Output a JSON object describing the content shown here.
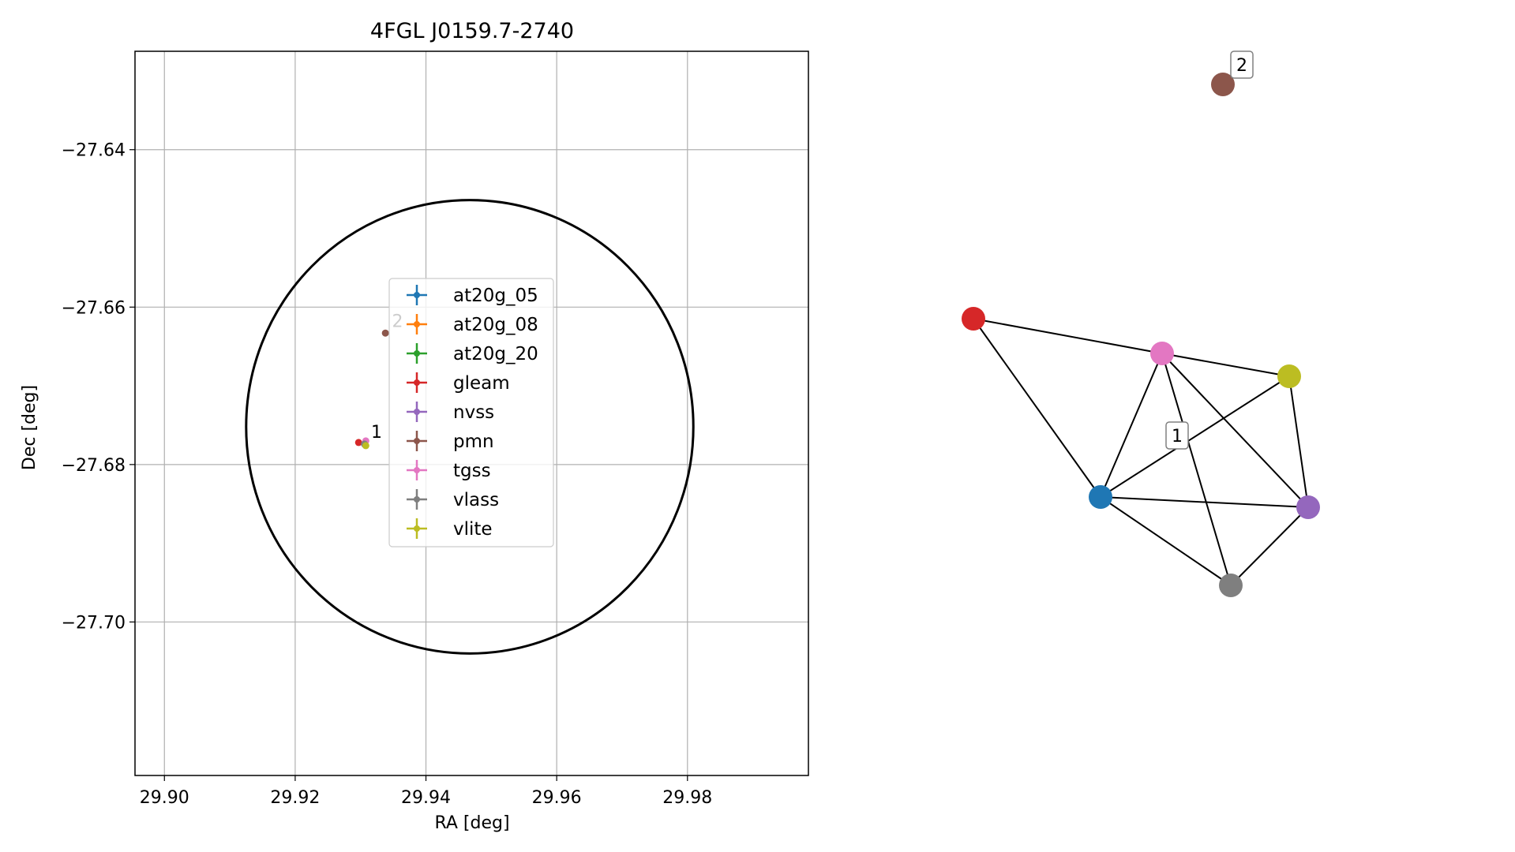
{
  "chart_data": [
    {
      "type": "scatter",
      "title": "4FGL J0159.7-2740",
      "xlabel": "RA [deg]",
      "ylabel": "Dec [deg]",
      "xlim": [
        29.8955,
        29.9985
      ],
      "ylim": [
        -27.7195,
        -27.6275
      ],
      "xticks": [
        29.9,
        29.92,
        29.94,
        29.96,
        29.98
      ],
      "xtick_labels": [
        "29.90",
        "29.92",
        "29.94",
        "29.96",
        "29.98"
      ],
      "yticks": [
        -27.64,
        -27.66,
        -27.68,
        -27.7
      ],
      "ytick_labels": [
        "−27.64",
        "−27.66",
        "−27.68",
        "−27.70"
      ],
      "grid": true,
      "legend_position": "center",
      "ellipse": {
        "center_x": 29.9467,
        "center_y": -27.6752,
        "radius_x": 0.0342,
        "radius_y": 0.0288,
        "color": "#000000"
      },
      "series": [
        {
          "name": "at20g_05",
          "color": "#1f77b4",
          "points": []
        },
        {
          "name": "at20g_08",
          "color": "#ff7f0e",
          "points": []
        },
        {
          "name": "at20g_20",
          "color": "#2ca02c",
          "points": []
        },
        {
          "name": "gleam",
          "color": "#d62728",
          "points": [
            [
              29.9297,
              -27.6772
            ]
          ]
        },
        {
          "name": "nvss",
          "color": "#9467bd",
          "points": [
            [
              29.9307,
              -27.6775
            ]
          ]
        },
        {
          "name": "pmn",
          "color": "#8c564b",
          "points": [
            [
              29.9338,
              -27.6633
            ]
          ]
        },
        {
          "name": "tgss",
          "color": "#e377c2",
          "points": [
            [
              29.9308,
              -27.677
            ]
          ]
        },
        {
          "name": "vlass",
          "color": "#7f7f7f",
          "points": [
            [
              29.9306,
              -27.6774
            ]
          ]
        },
        {
          "name": "vlite",
          "color": "#bcbd22",
          "points": [
            [
              29.9308,
              -27.6776
            ]
          ]
        }
      ],
      "annotations": [
        {
          "text": "1",
          "x": 29.9316,
          "y": -27.6758
        },
        {
          "text": "2",
          "x": 29.9348,
          "y": -27.6617
        }
      ]
    },
    {
      "type": "network",
      "nodes": [
        {
          "id": "at20g_05",
          "color": "#1f77b4"
        },
        {
          "id": "gleam",
          "color": "#d62728"
        },
        {
          "id": "nvss",
          "color": "#9467bd"
        },
        {
          "id": "pmn",
          "color": "#8c564b"
        },
        {
          "id": "tgss",
          "color": "#e377c2"
        },
        {
          "id": "vlass",
          "color": "#7f7f7f"
        },
        {
          "id": "vlite",
          "color": "#bcbd22"
        }
      ],
      "edges": [
        [
          "gleam",
          "tgss"
        ],
        [
          "gleam",
          "at20g_05"
        ],
        [
          "tgss",
          "vlite"
        ],
        [
          "tgss",
          "at20g_05"
        ],
        [
          "tgss",
          "nvss"
        ],
        [
          "tgss",
          "vlass"
        ],
        [
          "vlite",
          "at20g_05"
        ],
        [
          "vlite",
          "nvss"
        ],
        [
          "at20g_05",
          "nvss"
        ],
        [
          "at20g_05",
          "vlass"
        ],
        [
          "nvss",
          "vlass"
        ]
      ],
      "labels": [
        "1",
        "2"
      ]
    }
  ]
}
